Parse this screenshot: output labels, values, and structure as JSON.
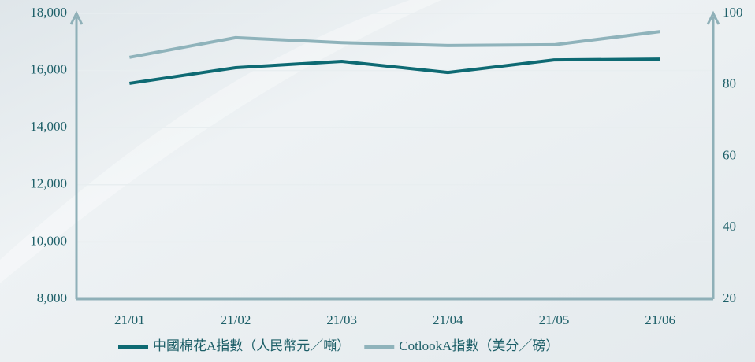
{
  "chart_data": {
    "type": "line",
    "categories": [
      "21/01",
      "21/02",
      "21/03",
      "21/04",
      "21/05",
      "21/06"
    ],
    "series": [
      {
        "name": "中國棉花A指數（人民幣元／噸）",
        "color": "#0e6a73",
        "values": [
          15550,
          16100,
          16320,
          15930,
          16370,
          16400
        ]
      },
      {
        "name": "CotlookA指數（美分／磅）",
        "color": "#8fb3bb",
        "axis": "y2",
        "values": [
          87.7,
          93.2,
          91.8,
          91.0,
          91.2,
          94.9
        ]
      }
    ],
    "ylim": [
      8000,
      18000
    ],
    "yticks": [
      {
        "value": 8000,
        "label": "8,000"
      },
      {
        "value": 10000,
        "label": "10,000"
      },
      {
        "value": 12000,
        "label": "12,000"
      },
      {
        "value": 14000,
        "label": "14,000"
      },
      {
        "value": 16000,
        "label": "16,000"
      },
      {
        "value": 18000,
        "label": "18,000"
      }
    ],
    "y2lim": [
      20,
      100
    ],
    "y2ticks": [
      20,
      40,
      60,
      80,
      100
    ],
    "grid": true
  }
}
